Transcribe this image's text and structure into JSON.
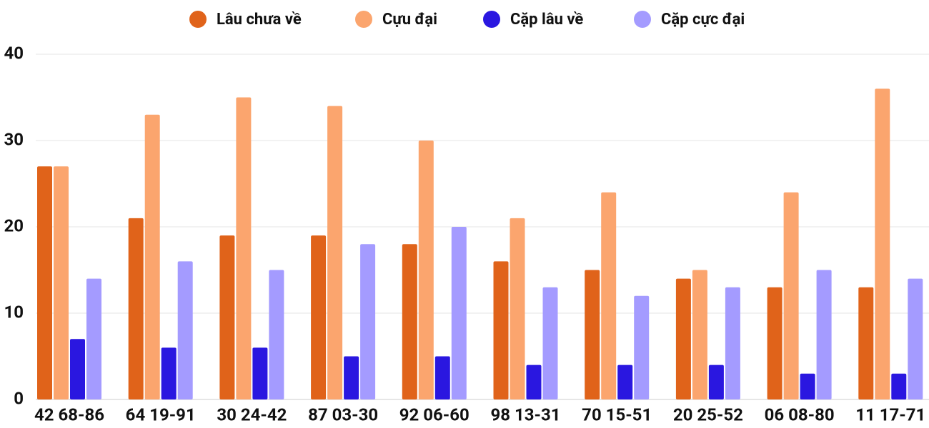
{
  "chart_data": {
    "type": "bar",
    "categories": [
      "42 68-86",
      "64 19-91",
      "30 24-42",
      "87 03-30",
      "92 06-60",
      "98 13-31",
      "70 15-51",
      "20 25-52",
      "06 08-80",
      "11 17-71"
    ],
    "series": [
      {
        "name": "Lâu chưa về",
        "color": "#e0631a",
        "values": [
          27,
          21,
          19,
          19,
          18,
          16,
          15,
          14,
          13,
          13
        ]
      },
      {
        "name": "Cựu đại",
        "color": "#fba56e",
        "values": [
          27,
          33,
          35,
          34,
          30,
          21,
          24,
          15,
          24,
          36
        ]
      },
      {
        "name": "Cặp lâu về",
        "color": "#2a17e0",
        "values": [
          7,
          6,
          6,
          5,
          5,
          4,
          4,
          4,
          3,
          3
        ]
      },
      {
        "name": "Cặp cực đại",
        "color": "#a49bff",
        "values": [
          14,
          16,
          15,
          18,
          20,
          13,
          12,
          13,
          15,
          14
        ]
      }
    ],
    "ylim": [
      0,
      40
    ],
    "yticks": [
      0,
      10,
      20,
      30,
      40
    ],
    "grid": true,
    "legend": "top"
  }
}
